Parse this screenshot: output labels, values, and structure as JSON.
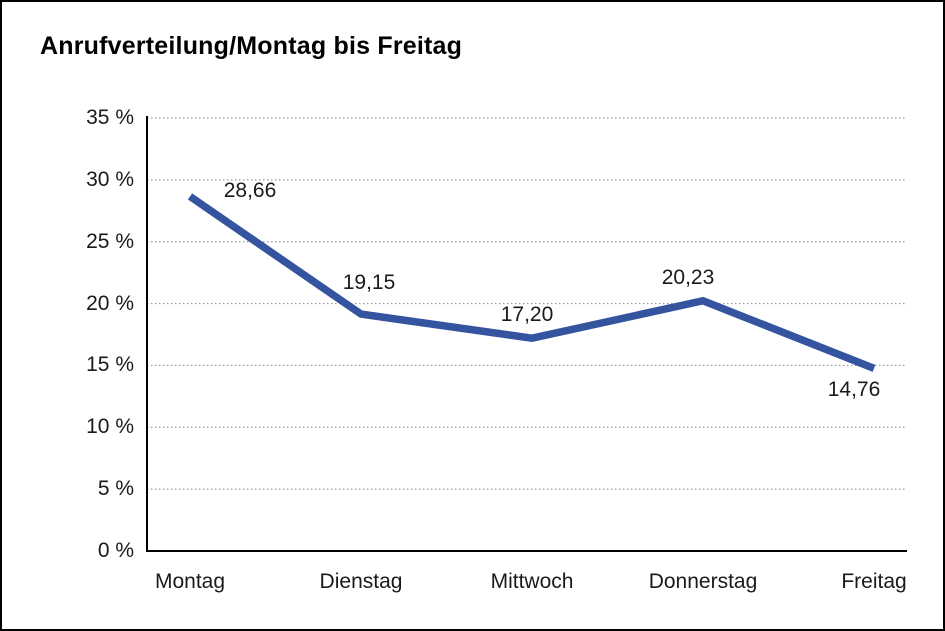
{
  "chart_data": {
    "type": "line",
    "title": "Anrufverteilung/Montag bis Freitag",
    "categories": [
      "Montag",
      "Dienstag",
      "Mittwoch",
      "Donnerstag",
      "Freitag"
    ],
    "series": [
      {
        "name": "Anrufverteilung",
        "values": [
          28.66,
          19.15,
          17.2,
          20.23,
          14.76
        ]
      }
    ],
    "data_labels": [
      "28,66",
      "19,15",
      "17,20",
      "20,23",
      "14,76"
    ],
    "xlabel": "",
    "ylabel": "",
    "ylim": [
      0,
      35
    ],
    "ytick_step": 5,
    "ytick_labels": [
      "0 %",
      "5 %",
      "10 %",
      "15 %",
      "20 %",
      "25 %",
      "30 %",
      "35 %"
    ],
    "grid": "horizontal-dotted",
    "legend": "none",
    "colors": {
      "line": "#3454A0",
      "axis": "#000000",
      "gridline": "#999999",
      "text": "#1a1a1a"
    }
  }
}
